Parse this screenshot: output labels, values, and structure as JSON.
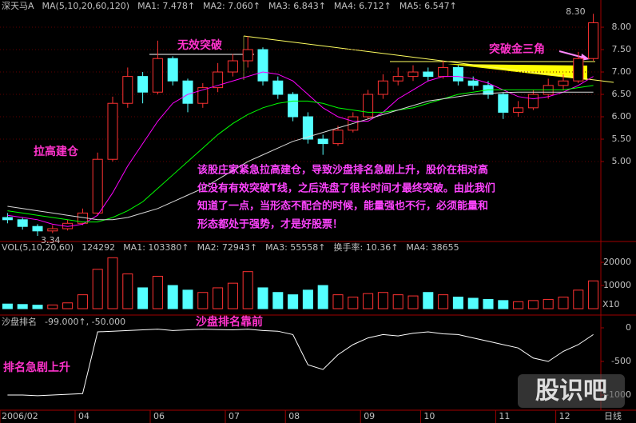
{
  "chart_data": [
    {
      "type": "candlestick",
      "header": [
        {
          "text": "深天马A",
          "color": "#ffffff"
        },
        {
          "text": "MA(5,10,20,60,120)",
          "color": "#c0c0c0"
        },
        {
          "text": "MA1: 7.478↑",
          "color": "#ffffff"
        },
        {
          "text": "MA2: 7.060↑",
          "color": "#ffff00"
        },
        {
          "text": "MA3: 6.843↑",
          "color": "#ff00ff"
        },
        {
          "text": "MA4: 6.712↑",
          "color": "#00ff00"
        },
        {
          "text": "MA5: 6.547↑",
          "color": "#c0c0c0"
        }
      ],
      "categories": [
        "2006/02",
        null,
        null,
        null,
        null,
        "04",
        null,
        null,
        null,
        null,
        "06",
        null,
        null,
        null,
        null,
        "07",
        null,
        null,
        null,
        "08",
        null,
        null,
        null,
        null,
        "09",
        null,
        null,
        null,
        "10",
        null,
        null,
        null,
        null,
        "11",
        null,
        null,
        null,
        "12",
        null,
        null
      ],
      "open": [
        3.75,
        3.7,
        3.55,
        3.45,
        3.5,
        3.62,
        3.85,
        5.05,
        6.3,
        6.9,
        6.55,
        7.3,
        6.8,
        6.3,
        6.65,
        7.0,
        7.25,
        7.5,
        6.8,
        6.5,
        6.0,
        5.5,
        5.4,
        5.7,
        6.0,
        6.5,
        6.8,
        6.9,
        7.0,
        6.9,
        7.1,
        6.8,
        6.7,
        6.5,
        6.1,
        6.2,
        6.5,
        6.7,
        6.8,
        7.3
      ],
      "high": [
        3.85,
        3.74,
        3.6,
        3.58,
        3.7,
        3.95,
        5.2,
        6.45,
        7.1,
        7.0,
        7.7,
        7.35,
        6.85,
        6.75,
        7.2,
        7.4,
        7.8,
        7.55,
        6.9,
        6.55,
        6.1,
        5.6,
        5.8,
        6.1,
        6.6,
        6.95,
        7.1,
        7.15,
        7.1,
        7.25,
        7.15,
        6.9,
        6.8,
        6.55,
        6.35,
        6.6,
        6.85,
        6.95,
        7.45,
        8.3
      ],
      "low": [
        3.62,
        3.48,
        3.34,
        3.4,
        3.46,
        3.58,
        3.8,
        5.0,
        6.2,
        6.3,
        6.5,
        6.7,
        6.1,
        6.2,
        6.55,
        6.9,
        7.1,
        6.7,
        6.4,
        5.9,
        5.4,
        5.15,
        5.35,
        5.65,
        5.95,
        6.4,
        6.7,
        6.8,
        6.8,
        6.85,
        6.7,
        6.6,
        6.4,
        5.95,
        6.0,
        6.15,
        6.4,
        6.6,
        6.75,
        7.25
      ],
      "close": [
        3.7,
        3.55,
        3.45,
        3.5,
        3.62,
        3.85,
        5.05,
        6.3,
        6.9,
        6.55,
        7.3,
        6.8,
        6.3,
        6.65,
        7.0,
        7.25,
        7.5,
        6.8,
        6.5,
        6.0,
        5.5,
        5.4,
        5.7,
        6.0,
        6.5,
        6.8,
        6.9,
        7.0,
        6.9,
        7.1,
        6.8,
        6.7,
        6.5,
        6.1,
        6.2,
        6.5,
        6.7,
        6.8,
        7.3,
        8.1
      ],
      "up_color": "#ff3232",
      "down_color": "#54ffff",
      "series": [
        {
          "color": "#ff00ff",
          "values": [
            3.8,
            3.75,
            3.7,
            3.6,
            3.55,
            3.6,
            3.8,
            4.3,
            4.9,
            5.4,
            5.9,
            6.3,
            6.5,
            6.6,
            6.7,
            6.8,
            6.9,
            7.0,
            6.95,
            6.8,
            6.5,
            6.2,
            6.0,
            5.9,
            5.9,
            6.1,
            6.4,
            6.6,
            6.8,
            6.9,
            6.9,
            6.85,
            6.75,
            6.6,
            6.45,
            6.4,
            6.45,
            6.55,
            6.7,
            6.9
          ]
        },
        {
          "color": "#00ff00",
          "values": [
            3.9,
            3.85,
            3.8,
            3.75,
            3.7,
            3.65,
            3.65,
            3.75,
            3.9,
            4.1,
            4.4,
            4.7,
            5.0,
            5.3,
            5.6,
            5.85,
            6.05,
            6.2,
            6.3,
            6.35,
            6.35,
            6.3,
            6.2,
            6.15,
            6.1,
            6.1,
            6.15,
            6.2,
            6.3,
            6.4,
            6.5,
            6.55,
            6.6,
            6.6,
            6.6,
            6.6,
            6.6,
            6.6,
            6.65,
            6.7
          ]
        },
        {
          "color": "#d8d8d8",
          "values": [
            4.0,
            3.95,
            3.9,
            3.85,
            3.8,
            3.75,
            3.7,
            3.7,
            3.75,
            3.85,
            3.95,
            4.1,
            4.25,
            4.4,
            4.6,
            4.8,
            5.0,
            5.15,
            5.3,
            5.45,
            5.55,
            5.65,
            5.75,
            5.85,
            5.95,
            6.05,
            6.15,
            6.25,
            6.35,
            6.4,
            6.45,
            6.5,
            6.52,
            6.54,
            6.55,
            6.55,
            6.55,
            6.55,
            6.55,
            6.55
          ]
        }
      ],
      "high_label": "8.30",
      "low_label": "3.34",
      "ylim": [
        3.25,
        8.34
      ],
      "yticks": [
        {
          "value": 5,
          "label": "5.00"
        },
        {
          "value": 5.5,
          "label": "5.50"
        },
        {
          "value": 6,
          "label": "6.00"
        },
        {
          "value": 6.5,
          "label": "6.50"
        },
        {
          "value": 7,
          "label": "7.00"
        },
        {
          "value": 7.5,
          "label": "7.50"
        },
        {
          "value": 8,
          "label": "8.00"
        }
      ],
      "grid": true,
      "period_label": "日线"
    },
    {
      "type": "bar",
      "header": [
        {
          "text": "VOL(5,10,20,60)",
          "color": "#c0c0c0"
        },
        {
          "text": "124292",
          "color": "#ffffff"
        },
        {
          "text": "MA1: 103380↑",
          "color": "#ffffff"
        },
        {
          "text": "MA2: 72943↑",
          "color": "#ffff00"
        },
        {
          "text": "MA3: 55558↑",
          "color": "#00ff00"
        },
        {
          "text": "换手率: 10.36↑",
          "color": "#ffffff"
        },
        {
          "text": "MA4: 38655",
          "color": "#4060ff"
        }
      ],
      "values": [
        2000,
        1800,
        1500,
        1600,
        2500,
        6000,
        17000,
        22000,
        15000,
        9000,
        14000,
        10000,
        8000,
        7000,
        9000,
        11000,
        16000,
        9000,
        7000,
        6000,
        8000,
        10000,
        6000,
        5000,
        6500,
        7000,
        6000,
        5500,
        7000,
        6000,
        5000,
        4500,
        4000,
        3500,
        3000,
        3500,
        4000,
        5000,
        8000,
        12000
      ],
      "ylim": [
        0,
        22800
      ],
      "yticks": [
        10000,
        20000
      ],
      "unit_label": "X10"
    },
    {
      "type": "line",
      "header": [
        {
          "text": "沙盘排名",
          "color": "#c0c0c0"
        },
        {
          "text": "-99.000↑, -50.000",
          "color": "#ffffff"
        }
      ],
      "values": [
        -1000,
        -1000,
        -1010,
        -1000,
        -990,
        -980,
        -60,
        -50,
        -40,
        -30,
        -20,
        -40,
        -30,
        -20,
        -25,
        -30,
        -20,
        -40,
        -50,
        -100,
        -550,
        -620,
        -400,
        -250,
        -150,
        -100,
        -120,
        -80,
        -60,
        -90,
        -100,
        -150,
        -200,
        -250,
        -300,
        -450,
        -500,
        -350,
        -250,
        -100
      ],
      "color": "#ffffff",
      "ylim": [
        -1143,
        119
      ],
      "yticks": [
        0,
        -500,
        -1000
      ]
    }
  ],
  "annotations": {
    "invalid_breakout": "无效突破",
    "golden_triangle": "突破金三角",
    "pull_up": "拉高建仓",
    "rank_top": "沙盘排名靠前",
    "rank_rise": "排名急剧上升",
    "note": [
      "该股庄家紧急拉高建仓，导致沙盘排名急剧上升，股价在相对高",
      "位没有有效突破T线，之后洗盘了很长时间才最终突破。由此我们",
      "知道了一点，当形态不配合的时候，能量强也不行，必须能量和",
      "形态都处于强势，才是好股票！"
    ],
    "watermark": "股识吧"
  }
}
